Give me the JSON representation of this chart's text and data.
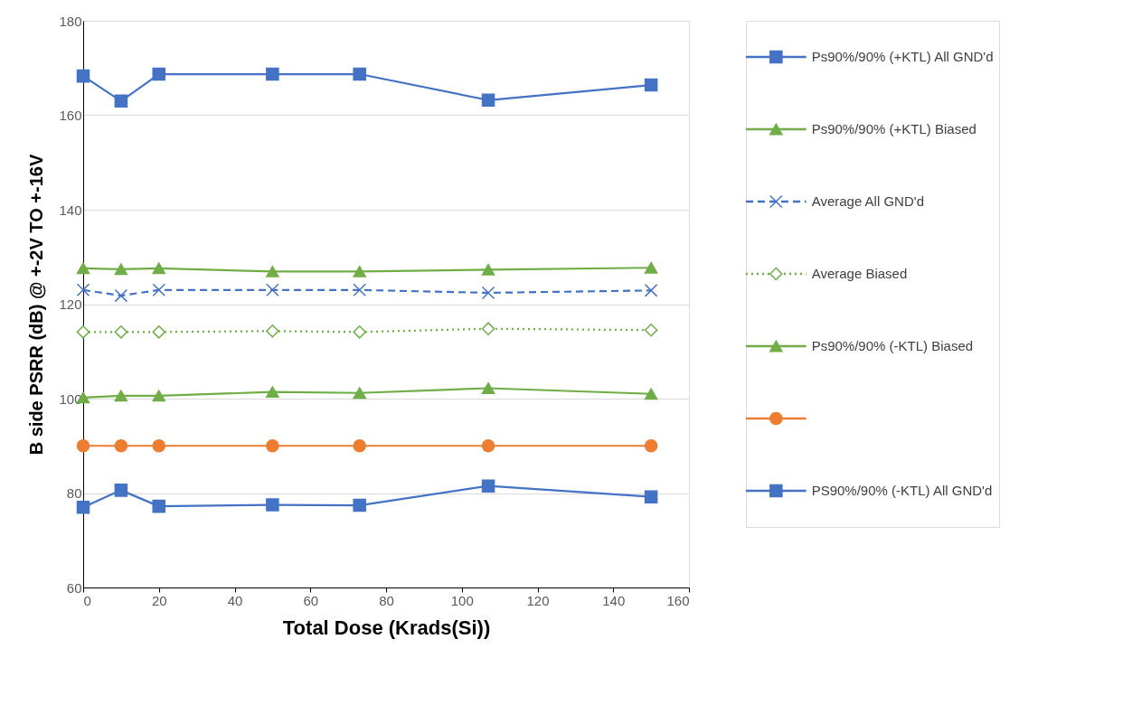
{
  "chart_data": {
    "type": "line",
    "xlabel": "Total Dose (Krads(Si))",
    "ylabel": "B side PSRR (dB) @ +-2V TO +-16V",
    "x": [
      0,
      10,
      20,
      50,
      73,
      107,
      150
    ],
    "xlim": [
      0,
      160
    ],
    "xticks": [
      0,
      20,
      40,
      60,
      80,
      100,
      120,
      140,
      160
    ],
    "ylim": [
      60,
      180
    ],
    "yticks": [
      60,
      80,
      100,
      120,
      140,
      160,
      180
    ],
    "grid": "y",
    "legend": "right",
    "series": [
      {
        "name": "Ps90%/90% (+KTL) All GND'd",
        "color": "#4472c4",
        "marker": "square",
        "line_style": "solid",
        "values": [
          168.3,
          163.0,
          168.7,
          168.7,
          168.7,
          163.2,
          166.4
        ]
      },
      {
        "name": "Ps90%/90% (+KTL) Biased",
        "color": "#70ad47",
        "marker": "triangle",
        "line_style": "solid",
        "values": [
          127.6,
          127.4,
          127.6,
          126.9,
          126.9,
          127.3,
          127.7
        ]
      },
      {
        "name": "Average All GND'd",
        "color": "#4472c4",
        "marker": "cross",
        "line_style": "dashed",
        "values": [
          123.0,
          121.8,
          123.0,
          123.0,
          123.0,
          122.4,
          122.9
        ]
      },
      {
        "name": "Average Biased",
        "color": "#70ad47",
        "marker": "diamond",
        "line_style": "dotted",
        "values": [
          114.1,
          114.1,
          114.1,
          114.3,
          114.1,
          114.8,
          114.5
        ]
      },
      {
        "name": "Ps90%/90% (-KTL) Biased",
        "color": "#70ad47",
        "marker": "triangle",
        "line_style": "solid",
        "values": [
          100.2,
          100.6,
          100.6,
          101.4,
          101.2,
          102.2,
          101.0
        ]
      },
      {
        "color": "#ed7d31",
        "marker": "circle",
        "line_style": "solid",
        "values": [
          90,
          90,
          90,
          90,
          90,
          90,
          90
        ]
      },
      {
        "name": "PS90%/90% (-KTL) All GND'd",
        "color": "#4472c4",
        "marker": "square",
        "line_style": "solid",
        "values": [
          77.0,
          80.6,
          77.2,
          77.5,
          77.4,
          81.5,
          79.2
        ]
      }
    ]
  }
}
